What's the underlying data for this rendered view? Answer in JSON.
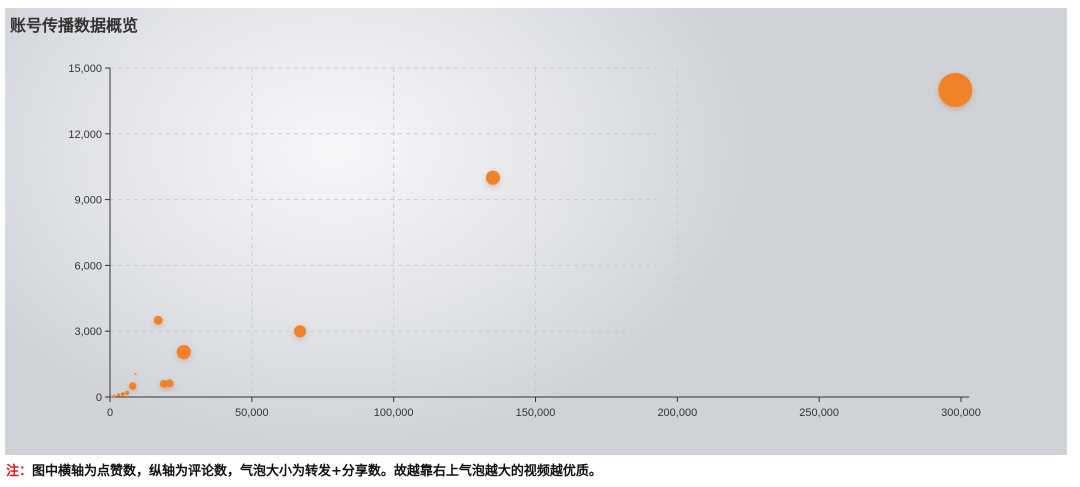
{
  "chart_data": {
    "type": "scatter",
    "title": "账号传播数据概览",
    "xlabel": "",
    "ylabel": "",
    "xlim": [
      0,
      300000
    ],
    "ylim": [
      0,
      15000
    ],
    "x_ticks": [
      "0",
      "50,000",
      "100,000",
      "150,000",
      "200,000",
      "250,000",
      "300,000"
    ],
    "y_ticks": [
      "0",
      "3,000",
      "6,000",
      "9,000",
      "12,000",
      "15,000"
    ],
    "grid": true,
    "bubble_color": "#f0822a",
    "points": [
      {
        "x": 298000,
        "y": 14000,
        "size": 290
      },
      {
        "x": 135000,
        "y": 10000,
        "size": 50
      },
      {
        "x": 67000,
        "y": 3000,
        "size": 36
      },
      {
        "x": 26000,
        "y": 2050,
        "size": 50
      },
      {
        "x": 17000,
        "y": 3500,
        "size": 20
      },
      {
        "x": 19000,
        "y": 600,
        "size": 16
      },
      {
        "x": 21000,
        "y": 620,
        "size": 16
      },
      {
        "x": 8000,
        "y": 500,
        "size": 14
      },
      {
        "x": 9000,
        "y": 1050,
        "size": 1
      },
      {
        "x": 6000,
        "y": 180,
        "size": 5
      },
      {
        "x": 4500,
        "y": 130,
        "size": 4
      },
      {
        "x": 3000,
        "y": 90,
        "size": 3
      },
      {
        "x": 1500,
        "y": 40,
        "size": 2
      },
      {
        "x": 500,
        "y": 10,
        "size": 1
      }
    ]
  },
  "note": {
    "label": "注：",
    "text": "图中横轴为点赞数，纵轴为评论数，气泡大小为转发+分享数。故越靠右上气泡越大的视频越优质。"
  }
}
